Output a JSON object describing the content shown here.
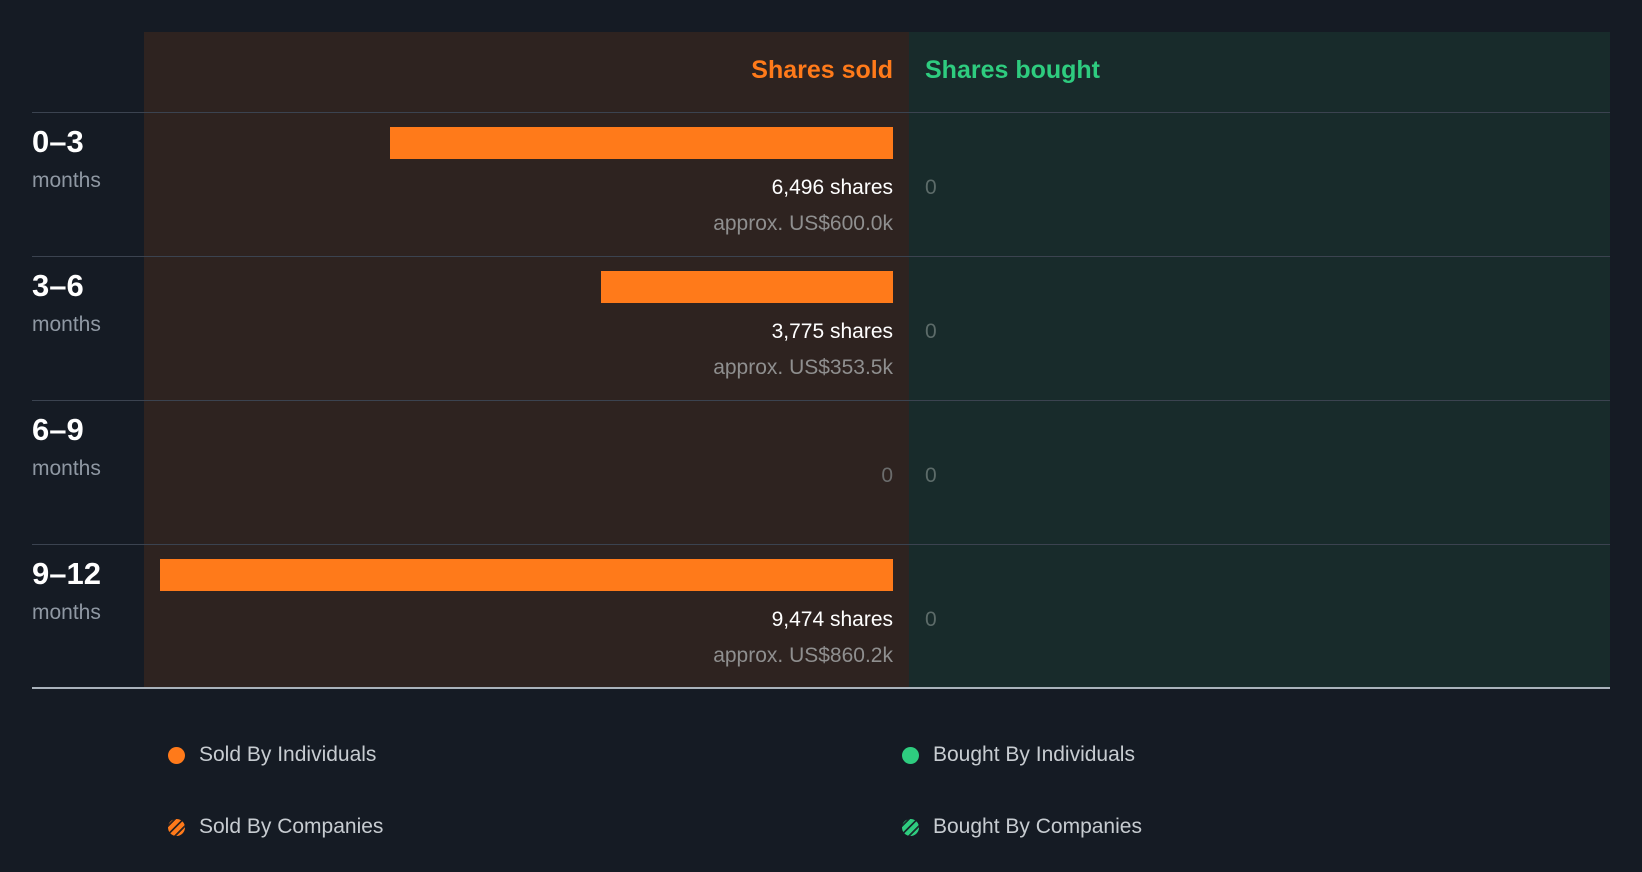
{
  "header": {
    "sold": "Shares sold",
    "bought": "Shares bought"
  },
  "colors": {
    "sold": "#ff7a1a",
    "bought": "#2ecc7f"
  },
  "chart_data": {
    "type": "bar",
    "categories": [
      "0–3 months",
      "3–6 months",
      "6–9 months",
      "9–12 months"
    ],
    "series": [
      {
        "name": "Shares sold",
        "values": [
          6496,
          3775,
          0,
          9474
        ]
      },
      {
        "name": "Shares bought",
        "values": [
          0,
          0,
          0,
          0
        ]
      }
    ],
    "xmax": 9474
  },
  "rows": [
    {
      "period": "0–3",
      "unit": "months",
      "sold_text": "6,496 shares",
      "sold_value": "approx. US$600.0k",
      "sold_zero": "",
      "bought_text": "0"
    },
    {
      "period": "3–6",
      "unit": "months",
      "sold_text": "3,775 shares",
      "sold_value": "approx. US$353.5k",
      "sold_zero": "",
      "bought_text": "0"
    },
    {
      "period": "6–9",
      "unit": "months",
      "sold_text": "",
      "sold_value": "",
      "sold_zero": "0",
      "bought_text": "0"
    },
    {
      "period": "9–12",
      "unit": "months",
      "sold_text": "9,474 shares",
      "sold_value": "approx. US$860.2k",
      "sold_zero": "",
      "bought_text": "0"
    }
  ],
  "legend": {
    "sold_individuals": "Sold By Individuals",
    "sold_companies": "Sold By Companies",
    "bought_individuals": "Bought By Individuals",
    "bought_companies": "Bought By Companies"
  }
}
